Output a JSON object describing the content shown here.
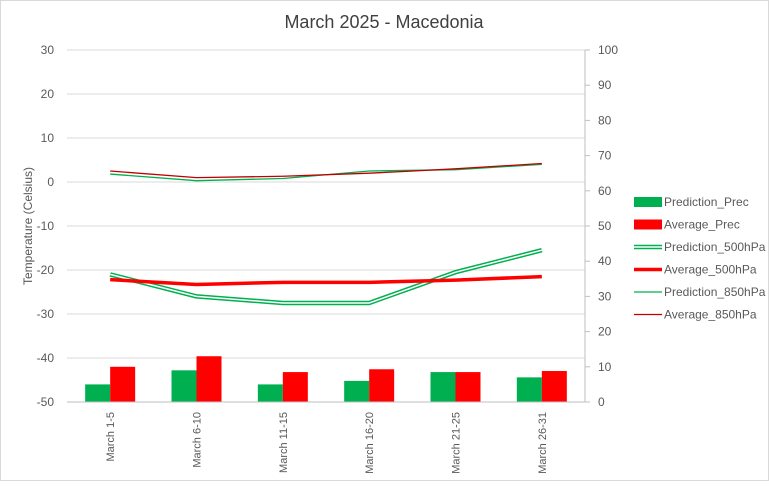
{
  "chart_data": {
    "type": "bar",
    "title": "March 2025 - Macedonia",
    "ylabel": "Temperature (Celsius)",
    "xlabel": "",
    "categories": [
      "March 1-5",
      "March 6-10",
      "March 11-15",
      "March 16-20",
      "March 21-25",
      "March 26-31"
    ],
    "left_axis": {
      "min": -50,
      "max": 30,
      "step": 10,
      "ticks": [
        "30",
        "20",
        "10",
        "0",
        "-10",
        "-20",
        "-30",
        "-40",
        "-50"
      ]
    },
    "right_axis": {
      "min": 0,
      "max": 100,
      "step": 10,
      "ticks": [
        "100",
        "90",
        "80",
        "70",
        "60",
        "50",
        "40",
        "30",
        "20",
        "10",
        "0"
      ]
    },
    "grid": true,
    "legend_position": "right",
    "series": [
      {
        "name": "Prediction_Prec",
        "kind": "bar",
        "axis": "right",
        "color": "#00b050",
        "values": [
          5,
          9,
          5,
          6,
          8.5,
          7
        ]
      },
      {
        "name": "Average_Prec",
        "kind": "bar",
        "axis": "right",
        "color": "#ff0000",
        "values": [
          10,
          13,
          8.5,
          9.3,
          8.5,
          8.8
        ]
      },
      {
        "name": "Prediction_500hPa",
        "kind": "line-double",
        "axis": "left",
        "color": "#00b050",
        "values": [
          -21,
          -26,
          -27.5,
          -27.5,
          -20.5,
          -15.5
        ]
      },
      {
        "name": "Average_500hPa",
        "kind": "line-thick",
        "axis": "left",
        "color": "#ff0000",
        "values": [
          -22.2,
          -23.3,
          -22.8,
          -22.8,
          -22.3,
          -21.5
        ]
      },
      {
        "name": "Prediction_850hPa",
        "kind": "line",
        "axis": "left",
        "color": "#00b050",
        "values": [
          1.8,
          0.3,
          0.8,
          2.5,
          2.8,
          4
        ]
      },
      {
        "name": "Average_850hPa",
        "kind": "line",
        "axis": "left",
        "color": "#c00000",
        "values": [
          2.5,
          1,
          1.3,
          2,
          3,
          4.2
        ]
      }
    ]
  }
}
